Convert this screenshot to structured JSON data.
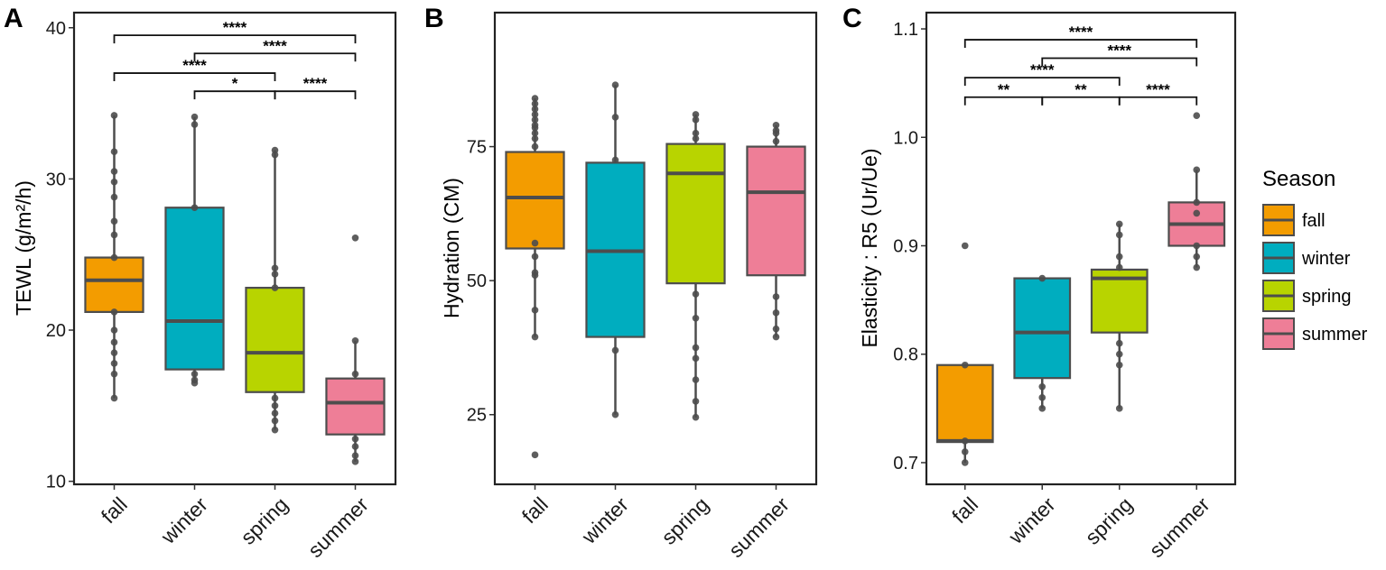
{
  "chart_data": [
    {
      "type": "box",
      "panel_label": "A",
      "ylabel": "TEWL (g/m²/h)",
      "ylim": [
        9.8,
        41
      ],
      "yticks": [
        10,
        20,
        30,
        40
      ],
      "categories": [
        "fall",
        "winter",
        "spring",
        "summer"
      ],
      "series": [
        {
          "name": "fall",
          "color": "#f39c00",
          "q1": 21.2,
          "median": 23.3,
          "q3": 24.8,
          "whisker_low": 15.5,
          "whisker_high": 34.2,
          "points": [
            34.2,
            31.8,
            30.5,
            29.8,
            28.8,
            27.2,
            26.3,
            24.8,
            21.2,
            20.0,
            19.2,
            18.5,
            17.8,
            17.1,
            15.5
          ]
        },
        {
          "name": "winter",
          "color": "#00adbf",
          "q1": 17.4,
          "median": 20.6,
          "q3": 28.1,
          "whisker_low": 16.5,
          "whisker_high": 34.1,
          "points": [
            34.1,
            33.6,
            28.1,
            17.1,
            16.7,
            16.5
          ]
        },
        {
          "name": "spring",
          "color": "#b8d400",
          "q1": 15.9,
          "median": 18.5,
          "q3": 22.8,
          "whisker_low": 13.4,
          "whisker_high": 31.9,
          "points": [
            31.9,
            31.6,
            24.1,
            23.7,
            22.8,
            15.5,
            15.0,
            14.5,
            14.0,
            13.4
          ]
        },
        {
          "name": "summer",
          "color": "#ee7e97",
          "q1": 13.1,
          "median": 15.2,
          "q3": 16.8,
          "whisker_low": 11.3,
          "whisker_high": 19.3,
          "points": [
            26.1,
            19.3,
            17.1,
            12.8,
            12.3,
            11.7,
            11.3
          ]
        }
      ],
      "comparisons": [
        {
          "from": "fall",
          "to": "summer",
          "y": 39.5,
          "label": "****"
        },
        {
          "from": "winter",
          "to": "summer",
          "y": 38.3,
          "label": "****"
        },
        {
          "from": "fall",
          "to": "spring",
          "y": 37.0,
          "label": "****"
        },
        {
          "from": "winter",
          "to": "spring",
          "y": 35.8,
          "label": "*"
        },
        {
          "from": "spring",
          "to": "summer",
          "y": 35.8,
          "label": "****"
        }
      ]
    },
    {
      "type": "box",
      "panel_label": "B",
      "ylabel": "Hydration (CM)",
      "ylim": [
        12,
        100
      ],
      "yticks": [
        25,
        50,
        75
      ],
      "categories": [
        "fall",
        "winter",
        "spring",
        "summer"
      ],
      "series": [
        {
          "name": "fall",
          "color": "#f39c00",
          "q1": 56.0,
          "median": 65.5,
          "q3": 74.0,
          "whisker_low": 39.5,
          "whisker_high": 84.0,
          "points": [
            84.0,
            83.0,
            82.0,
            81.0,
            80.0,
            79.0,
            78.5,
            77.5,
            76.5,
            75.0,
            57.0,
            54.5,
            51.5,
            51.0,
            44.5,
            39.5,
            17.5
          ]
        },
        {
          "name": "winter",
          "color": "#00adbf",
          "q1": 39.5,
          "median": 55.5,
          "q3": 72.0,
          "whisker_low": 25.0,
          "whisker_high": 86.5,
          "points": [
            86.5,
            80.5,
            72.5,
            37.0,
            25.0
          ]
        },
        {
          "name": "spring",
          "color": "#b8d400",
          "q1": 49.5,
          "median": 70.0,
          "q3": 75.5,
          "whisker_low": 24.5,
          "whisker_high": 81.0,
          "points": [
            81.0,
            80.0,
            77.5,
            76.5,
            47.5,
            43.0,
            37.5,
            35.5,
            31.5,
            27.5,
            24.5
          ]
        },
        {
          "name": "summer",
          "color": "#ee7e97",
          "q1": 51.0,
          "median": 66.5,
          "q3": 75.0,
          "whisker_low": 39.5,
          "whisker_high": 79.0,
          "points": [
            79.0,
            78.0,
            77.5,
            76.0,
            47.0,
            44.0,
            41.0,
            39.5
          ]
        }
      ],
      "comparisons": []
    },
    {
      "type": "box",
      "panel_label": "C",
      "ylabel": "Elasticity : R5 (Ur/Ue)",
      "ylim": [
        0.68,
        1.115
      ],
      "yticks": [
        0.7,
        0.8,
        0.9,
        1.0,
        1.1
      ],
      "ytick_labels": [
        "0.7",
        "0.8",
        "0.9",
        "1.0",
        "1.1"
      ],
      "categories": [
        "fall",
        "winter",
        "spring",
        "summer"
      ],
      "series": [
        {
          "name": "fall",
          "color": "#f39c00",
          "q1": 0.719,
          "median": 0.72,
          "q3": 0.79,
          "whisker_low": 0.7,
          "whisker_high": 0.79,
          "points": [
            0.9,
            0.79,
            0.72,
            0.71,
            0.7
          ]
        },
        {
          "name": "winter",
          "color": "#00adbf",
          "q1": 0.778,
          "median": 0.82,
          "q3": 0.87,
          "whisker_low": 0.75,
          "whisker_high": 0.87,
          "points": [
            0.87,
            0.77,
            0.76,
            0.75
          ]
        },
        {
          "name": "spring",
          "color": "#b8d400",
          "q1": 0.82,
          "median": 0.87,
          "q3": 0.878,
          "whisker_low": 0.75,
          "whisker_high": 0.92,
          "points": [
            0.92,
            0.91,
            0.89,
            0.88,
            0.81,
            0.8,
            0.79,
            0.75
          ]
        },
        {
          "name": "summer",
          "color": "#ee7e97",
          "q1": 0.9,
          "median": 0.92,
          "q3": 0.94,
          "whisker_low": 0.88,
          "whisker_high": 0.97,
          "points": [
            1.02,
            0.97,
            0.94,
            0.93,
            0.9,
            0.89,
            0.88
          ]
        }
      ],
      "comparisons": [
        {
          "from": "fall",
          "to": "summer",
          "y": 1.09,
          "label": "****"
        },
        {
          "from": "winter",
          "to": "summer",
          "y": 1.073,
          "label": "****"
        },
        {
          "from": "fall",
          "to": "spring",
          "y": 1.055,
          "label": "****"
        },
        {
          "from": "fall",
          "to": "winter",
          "y": 1.037,
          "label": "**"
        },
        {
          "from": "winter",
          "to": "spring",
          "y": 1.037,
          "label": "**"
        },
        {
          "from": "spring",
          "to": "summer",
          "y": 1.037,
          "label": "****"
        }
      ]
    }
  ],
  "legend": {
    "title": "Season",
    "items": [
      {
        "label": "fall",
        "color": "#f39c00"
      },
      {
        "label": "winter",
        "color": "#00adbf"
      },
      {
        "label": "spring",
        "color": "#b8d400"
      },
      {
        "label": "summer",
        "color": "#ee7e97"
      }
    ]
  }
}
